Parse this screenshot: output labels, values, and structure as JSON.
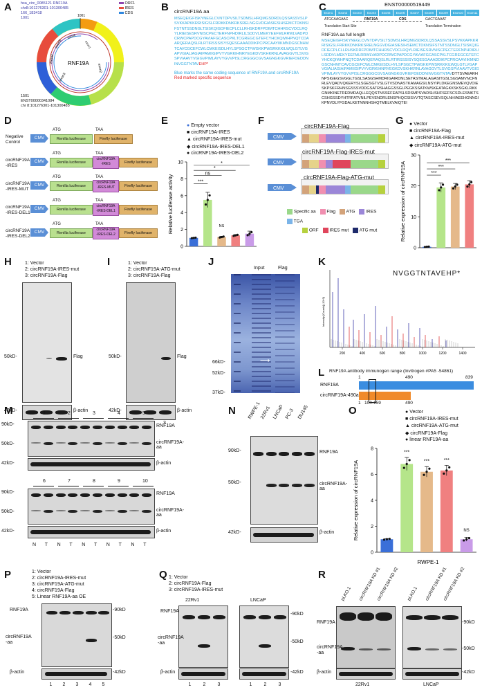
{
  "panels": {
    "A": "A",
    "B": "B",
    "C": "C",
    "D": "D",
    "E": "E",
    "F": "F",
    "G": "G",
    "H": "H",
    "I": "I",
    "J": "J",
    "K": "K",
    "L": "L",
    "M": "M",
    "N": "N",
    "O": "O",
    "P": "P",
    "Q": "Q",
    "R": "R"
  },
  "panel_a": {
    "circle_label": "RNF19A",
    "exons": [
      "exon1",
      "exon2",
      "exon3",
      "exon4",
      "exon5",
      "exon6"
    ],
    "header_lines": [
      "hsa_circ_0085121 RNF19A",
      "chr8:101276301-101300485",
      "166_183418",
      "1001"
    ],
    "footer_lines": [
      "1501",
      "ENST00000341084",
      "chr 8:101276301-101300485"
    ],
    "legend": [
      "ORF1",
      "IRES",
      "CDS"
    ],
    "legend_colors": [
      "#8e44ad",
      "#e74c3c",
      "#2e86de"
    ],
    "tick": "1001"
  },
  "panel_b": {
    "title": "circRNF19A aa",
    "sequence": "MSEQEIGFISKYNEGLCVNTDPVSILTSDMSLHRQMGSDRDLQSSASSVSLPSVKKAPKKRRISIGSLFRRKKDNKRKSRELNGGVDGIASIESIHSEMCTDKNSIFSTNTSSDNGLTSISKQIGDFIECPLCLLRHSKDRFPDIMTCHHRSCVDCLRQYLRIEISESRVNISCPECTERFNPHDIRLILSDDVLMEKYEEFMLRRWLVADPDCRWCPAPDCGYAVIAFGCASCPKLTCGREGCGTEFCYHCKQIWHPNQTCDAARQERAQSLRLRTIRSSSISYSQESGAAADDIKPCPRCAAYIIKMNDGSCNHMTCAVCGCEFCWLCMKEISDLHYLSPSGCTFWGKKPWSRKKKILWQLGTLVGAPVGIALIAGIAIPAMIIGIPVYVGRKIHNRYEGKDVSKHKRNLAVAGGVTLSVIGSPVIAAVTVGIGVPIMLAYVYGVVPISLCRGGGCGVSAGNGKGVRIEFDEDDNINVGGTNTAV",
    "tail": "EHP*",
    "note_blue": "Blue marks the same coding sequence of RNF19A and circRNF19A",
    "note_red": "Red marked specific sequence"
  },
  "panel_c": {
    "transcript": "ENST00000519449",
    "exons": [
      "Exon1",
      "Exon2",
      "Exon3",
      "Exon4",
      "Exon5",
      "Exon6",
      "Exon7",
      "Exon8",
      "Exon9",
      "Exon10",
      "Exon11"
    ],
    "start_seq": "ATGCAAGAAC",
    "gene": "RNF19A",
    "cds": "CDS",
    "end_seq": "GACTGAAAT",
    "start_label": "Translation Start Site",
    "end_label": "Translation Termination",
    "full_title": "RNF19A aa full length",
    "full_blue": "MSEQEIGFISKYNEGLCVNTDPVSILTSDMSLHRQMGSDRDLQSSASSVSLPSVKKAPKKRRISIGSLFRRKKDNKRKSRELNGGVDGIASIESIHSEMCTDKNSIFSTNTSSDNGLTSISKQIGDFIECPLCLLRHSKDRFPDIMTCHHRSCVDCLRQYLRIEISESRVNISCPECTERFNPHDIRLILSDDVLMEKYEEFMLRRWLVADPDCRWCPAPDCGYAVIAFGCASCPKLTCGREGCGTEFCYHCKQIWHPNQTCDAARQERAQSLRLRTIRSSSISYSQESGAAADDIKPCPRCAAYIIKMNDGSCNHMTCAVCGCEFCWLCMKEISDLHYLSPSGCTFWGKKPWSRKKKILWQLGTLVGAPVGIALIAGIAIPAMIIGIPVYVGRKIHNRYEGKDVSKHKRNLAVAGGVTLSVIGSPVIAAVTVGIGVPIMLAYVYGVVPISLCRGGGCGVSAGNGKGVRIEFDEDDNINVGGTNTAV",
    "full_black": "DTTSVAEARHNPSIGEGSVGGLTGSLSASGSHMDRIGAIRDNLSETASTMALAGASITGSLSGSAMVNCFNRLEVQADVQKERYSLSGESGTVSLGTVSDNASTKAMAGSILNSYIPLDKEGNSMEVQVDIESKPSKFRHNSGSSSVDDGSATRSHAGGSSGLPEGKSSATKWSKEATAGKKSKSGKLRKKGNMKINETREDMDAQLLEQQSTNSSEFEAPSLSDSMPSVADSHSHFSEFSCSDLESMKTSCSHGSSDYHTRFATVNILPEVENDRLENSPHQCSISVVTQTASCSEVSQLNHIAEEHGNNGIKPNVDLYFGDALKETNNNHSHQTMELKVAIQTEI"
  },
  "panel_d": {
    "constructs": [
      {
        "name": "Negative\nControl",
        "insert": ""
      },
      {
        "name": "circRNF19A\n-IRES",
        "insert": "circRNF19A\n-IRES"
      },
      {
        "name": "circRNF19A\n-IRES-MUT",
        "insert": "circRNF19A\n-IRES-MUT"
      },
      {
        "name": "circRNF19A\n-IRES-DEL1",
        "insert": "circRNF19A\n-IRES-DEL1"
      },
      {
        "name": "circRNF19A\n-IRES-DEL2",
        "insert": "circRNF19A\n-IRES-DEL2"
      }
    ],
    "cmv": "CMV",
    "atg": "ATG",
    "taa": "TAA",
    "renilla": "Renilla luciferase",
    "firefly": "Firefly luciferase"
  },
  "panel_e": {
    "legend": [
      "Empty vector",
      "circRNF19A-IRES",
      "circRNF19A-IRES-mut",
      "circRNF19A-IRES-DEL1",
      "circRNF19A-IRES-DEL2"
    ],
    "sig": [
      "***",
      "ns",
      "*",
      "*",
      "NS"
    ]
  },
  "panel_f": {
    "constructs": [
      "circRNF19A-Flag",
      "circRNF19A-Flag-IRES-mut",
      "circRNF19A-Flag-ATG-mut"
    ],
    "cmv": "CMV",
    "legend": [
      "Specific aa",
      "Flag",
      "ATG",
      "IRES",
      "TGA",
      "ORF",
      "IRES mut",
      "ATG mut"
    ]
  },
  "panel_g": {
    "legend": [
      "Vector",
      "circRNF19A-Flag",
      "circRNF19A-IRES-mut",
      "circRNF19A-ATG-mut"
    ],
    "sig": [
      "***",
      "***",
      "***"
    ]
  },
  "panel_h": {
    "legend": [
      "1: Vector",
      "2: circRNF19A-IRES-mut",
      "3: circRNF19A-Flag"
    ],
    "markers": [
      "50kD-",
      "42kD-"
    ],
    "labels": [
      "Flag",
      "β-actin"
    ],
    "lanes": [
      "1",
      "2",
      "3"
    ]
  },
  "panel_i": {
    "legend": [
      "1: Vector",
      "2: circRNF19A-ATG-mut",
      "3: circRNF19A-Flag"
    ],
    "markers": [
      "50kD-",
      "42kD-"
    ],
    "labels": [
      "Flag",
      "β-actin"
    ],
    "lanes": [
      "1",
      "2",
      "3"
    ]
  },
  "panel_j": {
    "headers": [
      "Input",
      "Flag"
    ],
    "markers": [
      "66kD-",
      "52kD-",
      "37kD-"
    ]
  },
  "panel_k": {
    "peptide": "NVGGTNTAVEHP*",
    "x_ticks": [
      "200",
      "400",
      "600",
      "800",
      "1000",
      "1200",
      "1400"
    ],
    "ylabel": "Intensity [Counts] (10^3)"
  },
  "panel_l": {
    "title": "RNF19A antibody immunogen range (Invitrogen #PA5 -54861)",
    "top_ticks": [
      "1",
      "490",
      "839"
    ],
    "bottom_ticks": [
      "1",
      "100-159",
      "490"
    ],
    "rows": [
      "RNF19A",
      "circRNF19A-490aa"
    ]
  },
  "panel_m": {
    "top_groups": [
      "1",
      "2",
      "3",
      "4",
      "5"
    ],
    "bottom_groups": [
      "6",
      "7",
      "8",
      "9",
      "10"
    ],
    "markers": [
      "90kD-",
      "50kD-",
      "42kD-"
    ],
    "labels": [
      "RNF19A",
      "circRNF19A-aa",
      "β-actin"
    ],
    "nt": [
      "N",
      "T",
      "N",
      "T",
      "N",
      "T",
      "N",
      "T",
      "N",
      "T"
    ]
  },
  "panel_n": {
    "lines": [
      "RWPE-1",
      "22Rv1",
      "LNCaP",
      "PC-3",
      "DU145"
    ],
    "markers": [
      "90kD-",
      "50kD-",
      "42kD-"
    ],
    "labels": [
      "RNF19A",
      "circRNF19A-aa",
      "β-actin"
    ]
  },
  "panel_o": {
    "legend": [
      "Vector",
      "circRNF19A-IRES-mut",
      "circRNF19A-ATG-mut",
      "circRNF19A-Flag",
      "linear RNF19A-aa"
    ],
    "xlabel": "RWPE-1",
    "sig": [
      "***",
      "***",
      "***",
      "NS"
    ]
  },
  "panel_p": {
    "legend": [
      "1: Vector",
      "2: circRNF19A-IRES-mut",
      "3: circRNF19A-ATG-mut",
      "4: circRNF19A-Flag",
      "5: Linear RNF19A-aa OE"
    ],
    "labels": [
      "RNF19A",
      "circRNF19A\n-aa",
      "β-actin"
    ],
    "markers": [
      "-90kD",
      "-50kD",
      "-42kD"
    ],
    "lanes": [
      "1",
      "2",
      "3",
      "4",
      "5"
    ]
  },
  "panel_q": {
    "legend": [
      "1: Vector",
      "2: circRNF19A-Flag",
      "3: circRNF19A-IRES-mut"
    ],
    "cells": [
      "22Rv1",
      "LNCaP"
    ],
    "labels": [
      "RNF19A",
      "circRNF19A\n-aa",
      "β-actin"
    ],
    "markers": [
      "-90kD",
      "-50kD",
      "-42kD"
    ],
    "lanes": [
      "1",
      "2",
      "3"
    ]
  },
  "panel_r": {
    "columns": [
      "pLKO.1",
      "circRNF19A KD #1",
      "circRNF19A KD #2"
    ],
    "cells": [
      "22Rv1",
      "LNCaP"
    ],
    "labels": [
      "RNF19A",
      "circRNF19A\n-aa",
      "β-actin"
    ],
    "markers": [
      "-90kD",
      "-50kD",
      "-42kD"
    ]
  },
  "chart_data": [
    {
      "id": "E",
      "type": "bar",
      "title": "",
      "xlabel": "",
      "ylabel": "Relative luciferase activity",
      "categories": [
        "Empty vector",
        "circRNF19A-IRES",
        "circRNF19A-IRES-mut",
        "circRNF19A-IRES-DEL1",
        "circRNF19A-IRES-DEL2"
      ],
      "values": [
        1.0,
        5.5,
        1.1,
        1.3,
        1.5
      ],
      "errors": [
        0.05,
        0.9,
        0.1,
        0.1,
        0.3
      ],
      "colors": [
        "#3a6fd8",
        "#b5e58a",
        "#e5b98a",
        "#f08080",
        "#c99be8"
      ],
      "yticks": [
        0,
        2,
        4,
        6,
        8,
        10
      ],
      "ylim": [
        0,
        10
      ]
    },
    {
      "id": "G",
      "type": "bar",
      "title": "",
      "xlabel": "",
      "ylabel": "Relative expression of circRNF19A",
      "categories": [
        "Vector",
        "circRNF19A-Flag",
        "circRNF19A-IRES-mut",
        "circRNF19A-ATG-mut"
      ],
      "values": [
        0.3,
        19.5,
        19.8,
        20.5
      ],
      "errors": [
        0.1,
        1.5,
        1.0,
        1.2
      ],
      "colors": [
        "#3a6fd8",
        "#b5e58a",
        "#e5b98a",
        "#f08080"
      ],
      "yticks": [
        0,
        10,
        20,
        30
      ],
      "ylim": [
        0,
        30
      ]
    },
    {
      "id": "O",
      "type": "bar",
      "title": "",
      "xlabel": "RWPE-1",
      "ylabel": "Relative expression of circRNF19A",
      "categories": [
        "Vector",
        "circRNF19A-IRES-mut",
        "circRNF19A-ATG-mut",
        "circRNF19A-Flag",
        "linear RNF19A-aa"
      ],
      "values": [
        1.0,
        6.8,
        6.2,
        6.3,
        1.0
      ],
      "errors": [
        0.05,
        0.5,
        0.4,
        0.4,
        0.15
      ],
      "colors": [
        "#3a6fd8",
        "#b5e58a",
        "#e5b98a",
        "#f08080",
        "#c99be8"
      ],
      "yticks": [
        0,
        2,
        4,
        6,
        8
      ],
      "ylim": [
        0,
        8
      ]
    }
  ]
}
